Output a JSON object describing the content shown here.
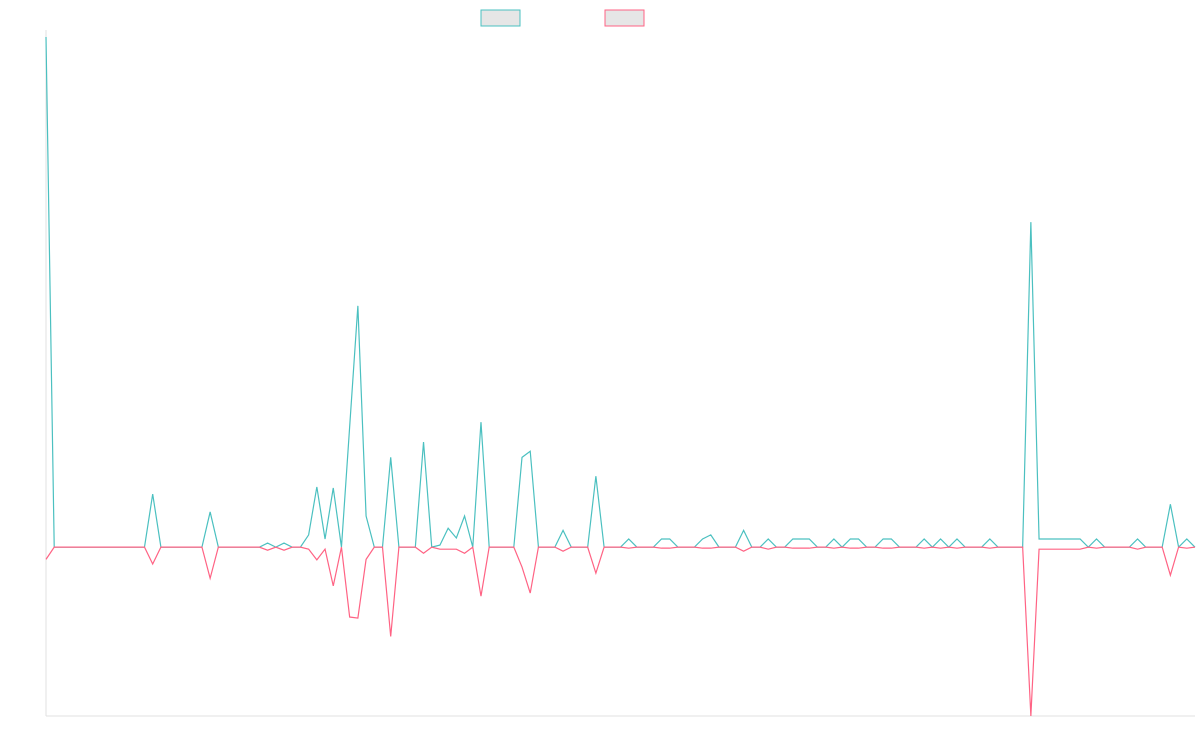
{
  "chart_data": {
    "type": "line",
    "categories": [
      null,
      null,
      null,
      null,
      null,
      null,
      null,
      null,
      null,
      null,
      null,
      null,
      null,
      null,
      null,
      null,
      null,
      null,
      null,
      null,
      null,
      null,
      null,
      null,
      null,
      null,
      null,
      null,
      null,
      null,
      null,
      null,
      null,
      null,
      null,
      null,
      null,
      null,
      null,
      null,
      null,
      null,
      null,
      null,
      null,
      null,
      null,
      null,
      null,
      null,
      null,
      null,
      null,
      null,
      null,
      null,
      null,
      null,
      null,
      null,
      null,
      null,
      null,
      null,
      null,
      null,
      null,
      null,
      null,
      null,
      null,
      null,
      null,
      null,
      null,
      null,
      null,
      null,
      null,
      null,
      null,
      null,
      null,
      null,
      null,
      null,
      null,
      null,
      null,
      null,
      null,
      null,
      null,
      null,
      null,
      null,
      null,
      null,
      null,
      null,
      null,
      null,
      null,
      null,
      null,
      null,
      null,
      null,
      null,
      null,
      null,
      null,
      null,
      null,
      null,
      null,
      null,
      null,
      null,
      null,
      null,
      null,
      null,
      null,
      null,
      null,
      null,
      null,
      null,
      null,
      null,
      null,
      null,
      null,
      null,
      null,
      null,
      null,
      null,
      null,
      null
    ],
    "series": [
      {
        "color": "#4bc0c0",
        "values": [
          100,
          0,
          0,
          0,
          0,
          0,
          0,
          0,
          0,
          0,
          0,
          0,
          0,
          10.4,
          0,
          0,
          0,
          0,
          0,
          0,
          6.9,
          0,
          0,
          0,
          0,
          0,
          0,
          0.8,
          0,
          0.8,
          0,
          0,
          2.4,
          11.8,
          1.6,
          11.6,
          0,
          23.6,
          47.3,
          6.1,
          0,
          0,
          17.6,
          0,
          0,
          0,
          20.6,
          0,
          0.4,
          3.7,
          1.8,
          6.1,
          0,
          24.5,
          0,
          0,
          0,
          0,
          17.6,
          18.8,
          0,
          0,
          0,
          3.3,
          0,
          0,
          0,
          13.9,
          0,
          0,
          0,
          1.6,
          0,
          0,
          0,
          1.6,
          1.6,
          0,
          0,
          0,
          1.6,
          2.4,
          0,
          0,
          0,
          3.3,
          0,
          0,
          1.6,
          0,
          0,
          1.6,
          1.6,
          1.6,
          0,
          0,
          1.6,
          0,
          1.6,
          1.6,
          0,
          0,
          1.6,
          1.6,
          0,
          0,
          0,
          1.6,
          0,
          1.6,
          0,
          1.6,
          0,
          0,
          0,
          1.6,
          0,
          0,
          0,
          0,
          63.7,
          1.6,
          1.6,
          1.6,
          1.6,
          1.6,
          1.6,
          0,
          1.6,
          0,
          0,
          0,
          0,
          1.6,
          0,
          0,
          0,
          8.4,
          0,
          1.6,
          0
        ]
      },
      {
        "color": "#ff6384",
        "values": [
          -2.4,
          0,
          0,
          0,
          0,
          0,
          0,
          0,
          0,
          0,
          0,
          0,
          0,
          -3.3,
          0,
          0,
          0,
          0,
          0,
          0,
          -6.1,
          0,
          0,
          0,
          0,
          0,
          0,
          -0.6,
          0,
          -0.6,
          0,
          0,
          -0.4,
          -2.5,
          -0.4,
          -7.6,
          0,
          -13.7,
          -13.9,
          -2.4,
          0,
          0,
          -17.5,
          0,
          0,
          0,
          -1.2,
          0,
          -0.4,
          -0.4,
          -0.4,
          -1.2,
          0,
          -9.6,
          0,
          0,
          0,
          0,
          -3.9,
          -9,
          0,
          0,
          0,
          -0.8,
          0,
          0,
          0,
          -5.1,
          0,
          0,
          0,
          -0.2,
          0,
          0,
          0,
          -0.2,
          -0.2,
          0,
          0,
          0,
          -0.2,
          -0.2,
          0,
          0,
          0,
          -0.8,
          0,
          0,
          -0.4,
          0,
          0,
          -0.2,
          -0.2,
          -0.2,
          0,
          0,
          -0.2,
          0,
          -0.2,
          -0.2,
          0,
          0,
          -0.2,
          -0.2,
          0,
          0,
          0,
          -0.2,
          0,
          -0.2,
          0,
          -0.2,
          0,
          0,
          0,
          -0.2,
          0,
          0,
          0,
          0,
          -33.1,
          -0.4,
          -0.4,
          -0.4,
          -0.4,
          -0.4,
          -0.4,
          0,
          -0.2,
          0,
          0,
          0,
          0,
          -0.4,
          0,
          0,
          0,
          -5.5,
          0,
          -0.2,
          0
        ]
      }
    ],
    "ylim": [
      -33.1,
      100
    ]
  }
}
